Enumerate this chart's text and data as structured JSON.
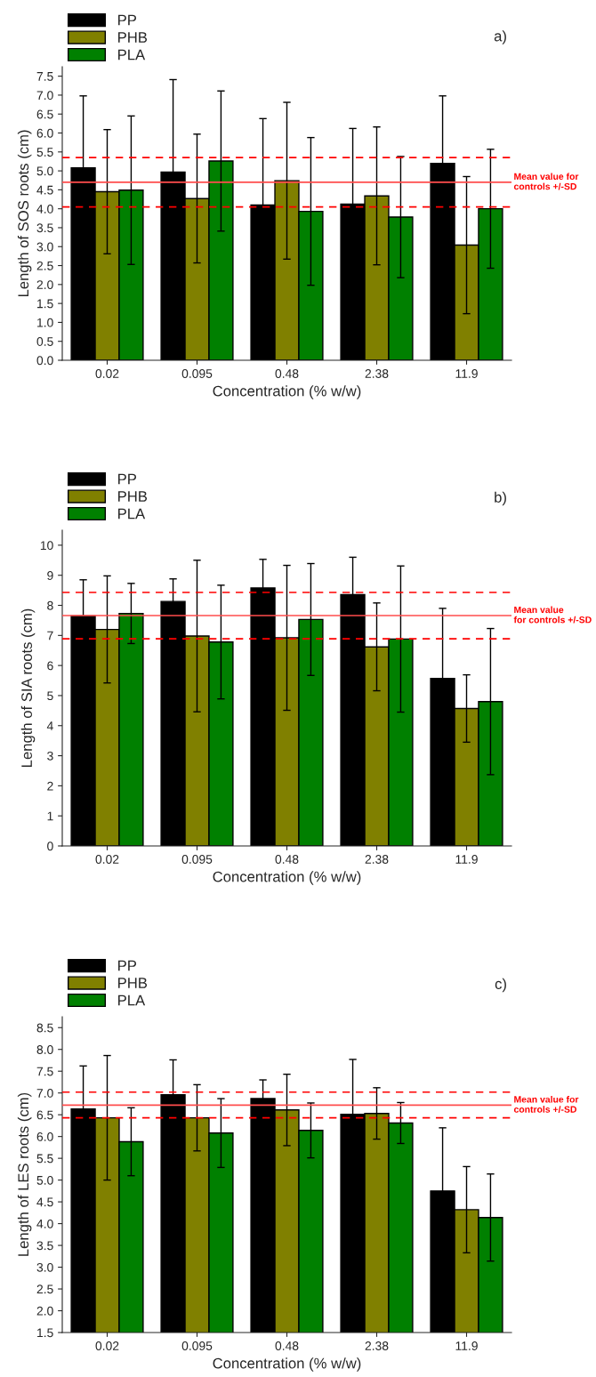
{
  "chart_data": [
    {
      "type": "bar",
      "annotations": [
        "a)"
      ],
      "xlabel": "Concentration (% w/w)",
      "ylabel": "Length of SOS roots (cm)",
      "categories": [
        "0.02",
        "0.095",
        "0.48",
        "2.38",
        "11.9"
      ],
      "series": [
        {
          "name": "PP",
          "color": "#000000",
          "values": [
            5.08,
            4.97,
            4.1,
            4.12,
            5.2
          ],
          "errors": [
            1.9,
            2.44,
            2.28,
            2.0,
            1.78
          ]
        },
        {
          "name": "PHB",
          "color": "#808000",
          "values": [
            4.45,
            4.27,
            4.74,
            4.34,
            3.04
          ],
          "errors": [
            1.64,
            1.7,
            2.07,
            1.82,
            1.81
          ]
        },
        {
          "name": "PLA",
          "color": "#008000",
          "values": [
            4.49,
            5.26,
            3.93,
            3.78,
            4.0
          ],
          "errors": [
            1.96,
            1.85,
            1.95,
            1.6,
            1.57
          ]
        }
      ],
      "ylim": [
        0,
        7.75
      ],
      "yticks": [
        {
          "value": 0,
          "label": "0.0"
        },
        {
          "value": 0.5,
          "label": "0.5"
        },
        {
          "value": 1,
          "label": "1.0"
        },
        {
          "value": 1.5,
          "label": "1.5"
        },
        {
          "value": 2,
          "label": "2.0"
        },
        {
          "value": 2.5,
          "label": "2.5"
        },
        {
          "value": 3,
          "label": "3.0"
        },
        {
          "value": 3.5,
          "label": "3.5"
        },
        {
          "value": 4,
          "label": "4.0"
        },
        {
          "value": 4.5,
          "label": "4.5"
        },
        {
          "value": 5,
          "label": "5.0"
        },
        {
          "value": 5.5,
          "label": "5.5"
        },
        {
          "value": 6,
          "label": "6.0"
        },
        {
          "value": 6.5,
          "label": "6.5"
        },
        {
          "value": 7,
          "label": "7.0"
        },
        {
          "value": 7.5,
          "label": "7.5"
        }
      ],
      "ref_lines": [
        {
          "axis": "y",
          "value": 4.7,
          "label": "Mean value for\ncontrols +/-SD",
          "color": "#ff4d4d",
          "line_style": "solid"
        },
        {
          "axis": "y",
          "value": 5.35,
          "color": "#ff0000",
          "line_style": "dashed"
        },
        {
          "axis": "y",
          "value": 4.05,
          "color": "#ff0000",
          "line_style": "dashed"
        }
      ],
      "legend": "top left"
    },
    {
      "type": "bar",
      "annotations": [
        "b)"
      ],
      "xlabel": "Concentration (% w/w)",
      "ylabel": "Length of SIA roots (cm)",
      "categories": [
        "0.02",
        "0.095",
        "0.48",
        "2.38",
        "11.9"
      ],
      "series": [
        {
          "name": "PP",
          "color": "#000000",
          "values": [
            7.65,
            8.13,
            8.58,
            8.36,
            5.57
          ],
          "errors": [
            1.2,
            0.75,
            0.95,
            1.24,
            2.33
          ]
        },
        {
          "name": "PHB",
          "color": "#808000",
          "values": [
            7.2,
            6.98,
            6.92,
            6.62,
            4.57
          ],
          "errors": [
            1.78,
            2.52,
            2.41,
            1.46,
            1.12
          ]
        },
        {
          "name": "PLA",
          "color": "#008000",
          "values": [
            7.73,
            6.78,
            7.53,
            6.88,
            4.8
          ],
          "errors": [
            1.0,
            1.89,
            1.86,
            2.43,
            2.43
          ]
        }
      ],
      "ylim": [
        0,
        10.5
      ],
      "yticks": [
        0,
        1,
        2,
        3,
        4,
        5,
        6,
        7,
        8,
        9,
        10
      ],
      "ref_lines": [
        {
          "axis": "y",
          "value": 7.66,
          "label": "Mean value\nfor controls +/-SD",
          "color": "#ff4d4d",
          "line_style": "solid"
        },
        {
          "axis": "y",
          "value": 8.43,
          "color": "#ff0000",
          "line_style": "dashed"
        },
        {
          "axis": "y",
          "value": 6.89,
          "color": "#ff0000",
          "line_style": "dashed"
        }
      ],
      "legend": "top left"
    },
    {
      "type": "bar",
      "annotations": [
        "c)"
      ],
      "xlabel": "Concentration (% w/w)",
      "ylabel": "Length of LES roots (cm)",
      "categories": [
        "0.02",
        "0.095",
        "0.48",
        "2.38",
        "11.9"
      ],
      "series": [
        {
          "name": "PP",
          "color": "#000000",
          "values": [
            6.63,
            6.96,
            6.87,
            6.51,
            4.75
          ],
          "errors": [
            0.99,
            0.8,
            0.43,
            1.26,
            1.45
          ]
        },
        {
          "name": "PHB",
          "color": "#808000",
          "values": [
            6.43,
            6.43,
            6.61,
            6.53,
            4.32
          ],
          "errors": [
            1.43,
            0.76,
            0.82,
            0.59,
            0.99
          ]
        },
        {
          "name": "PLA",
          "color": "#008000",
          "values": [
            5.88,
            6.08,
            6.14,
            6.31,
            4.14
          ],
          "errors": [
            0.78,
            0.79,
            0.63,
            0.47,
            1.0
          ]
        }
      ],
      "ylim": [
        1.5,
        8.75
      ],
      "yticks": [
        {
          "value": 1.5,
          "label": "1.5"
        },
        {
          "value": 2,
          "label": "2.0"
        },
        {
          "value": 2.5,
          "label": "2.5"
        },
        {
          "value": 3,
          "label": "3.0"
        },
        {
          "value": 3.5,
          "label": "3.5"
        },
        {
          "value": 4,
          "label": "4.0"
        },
        {
          "value": 4.5,
          "label": "4.5"
        },
        {
          "value": 5,
          "label": "5.0"
        },
        {
          "value": 5.5,
          "label": "5.5"
        },
        {
          "value": 6,
          "label": "6.0"
        },
        {
          "value": 6.5,
          "label": "6.5"
        },
        {
          "value": 7,
          "label": "7.0"
        },
        {
          "value": 7.5,
          "label": "7.5"
        },
        {
          "value": 8,
          "label": "8.0"
        },
        {
          "value": 8.5,
          "label": "8.5"
        }
      ],
      "ref_lines": [
        {
          "axis": "y",
          "value": 6.72,
          "label": "Mean value for\ncontrols +/-SD",
          "color": "#ff4d4d",
          "line_style": "solid"
        },
        {
          "axis": "y",
          "value": 7.02,
          "color": "#ff0000",
          "line_style": "dashed"
        },
        {
          "axis": "y",
          "value": 6.43,
          "color": "#ff0000",
          "line_style": "dashed"
        }
      ],
      "legend": "top left"
    }
  ]
}
